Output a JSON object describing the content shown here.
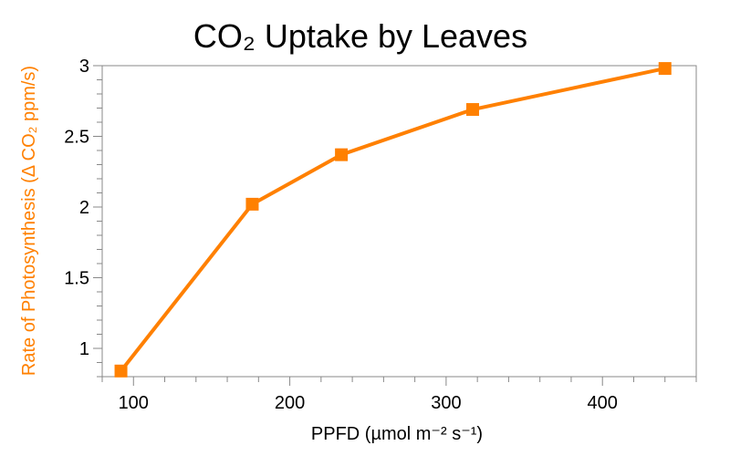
{
  "chart_data": {
    "type": "line",
    "title": "CO₂ Uptake by Leaves",
    "xlabel": "PPFD (µmol m⁻² s⁻¹)",
    "ylabel": "Rate of Photosynthesis  (Δ CO₂ ppm/s)",
    "xlim": [
      80,
      460
    ],
    "ylim": [
      0.8,
      3.0
    ],
    "x_ticks": [
      100,
      200,
      300,
      400
    ],
    "x_tick_labels": [
      "100",
      "200",
      "300",
      "400"
    ],
    "y_ticks": [
      1,
      1.5,
      2,
      2.5,
      3
    ],
    "y_tick_labels": [
      "1",
      "1.5",
      "2",
      "2.5",
      "3"
    ],
    "x_minor_step": 20,
    "y_minor_step": 0.1,
    "grid": false,
    "legend": "none",
    "series": [
      {
        "x": [
          92,
          176,
          233,
          317,
          440
        ],
        "y": [
          0.84,
          2.02,
          2.37,
          2.69,
          2.98
        ],
        "color": "#ff8000",
        "marker": "square"
      }
    ],
    "colors": {
      "series": "#ff8000",
      "ylabel": "#ff8000",
      "axis": "#888888"
    }
  }
}
